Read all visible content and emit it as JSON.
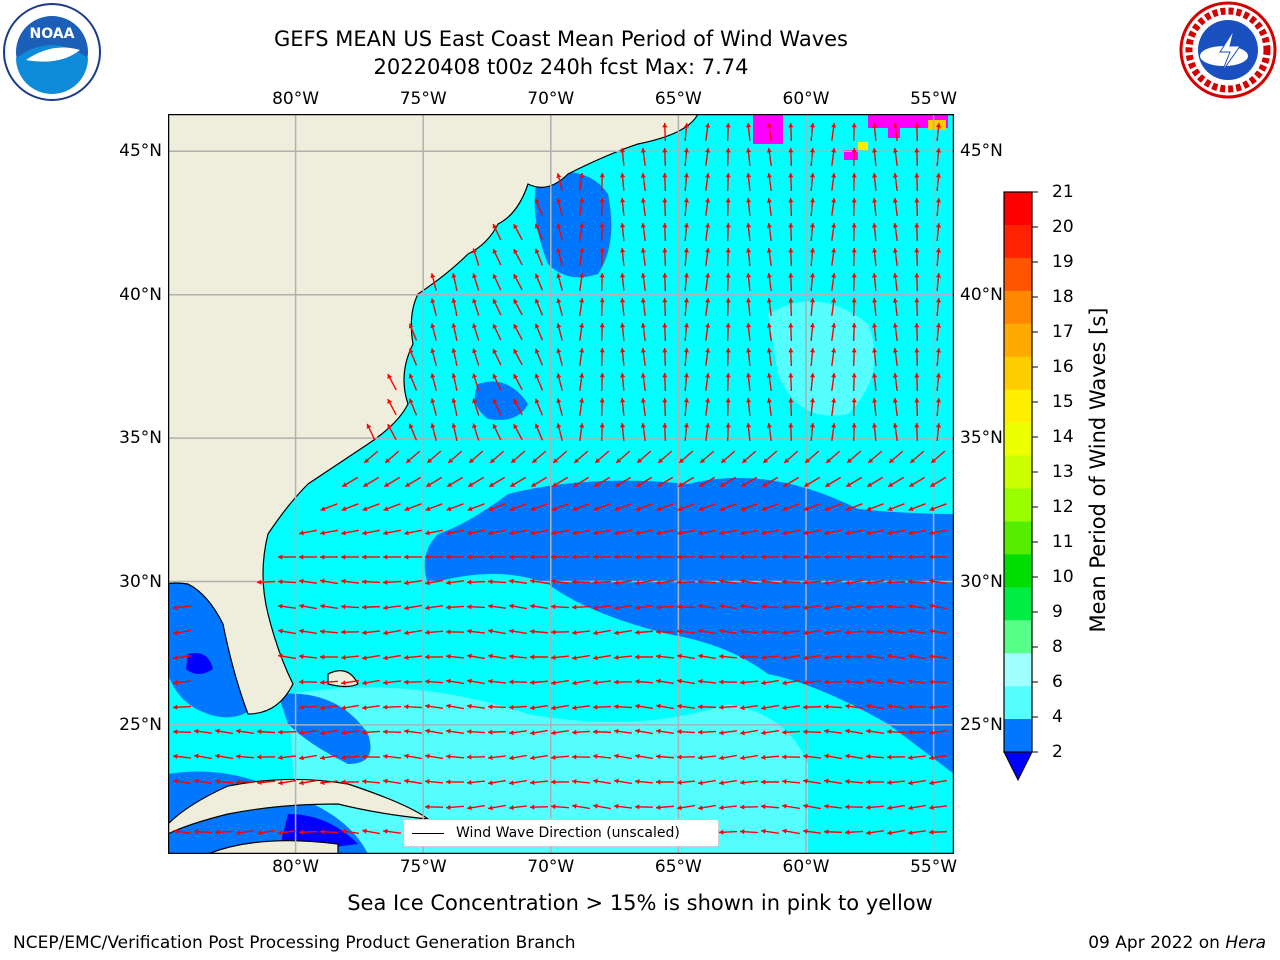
{
  "title": {
    "line1": "GEFS MEAN US East Coast Mean Period of Wind Waves",
    "line2": "20220408 t00z 240h fcst   Max: 7.74"
  },
  "logos": {
    "noaa": "NOAA",
    "nws_icon": "nws-seal-icon"
  },
  "map": {
    "lon_labels": [
      "80°W",
      "75°W",
      "70°W",
      "65°W",
      "60°W",
      "55°W"
    ],
    "lat_labels": [
      "45°N",
      "40°N",
      "35°N",
      "30°N",
      "25°N"
    ],
    "lon_values": [
      -80,
      -75,
      -70,
      -65,
      -60,
      -55
    ],
    "lat_values": [
      45,
      40,
      35,
      30,
      25
    ],
    "extent": {
      "lon": [
        -85,
        -54.2
      ],
      "lat": [
        20.5,
        46.3
      ]
    },
    "land_color": "#efeedd",
    "arrow_color": "#ff0000",
    "legend_label": "Wind Wave Direction (unscaled)"
  },
  "colorbar": {
    "label": "Mean Period of Wind Waves [s]",
    "ticks": [
      "21",
      "20",
      "19",
      "18",
      "17",
      "16",
      "15",
      "14",
      "13",
      "12",
      "11",
      "10",
      "9",
      "8",
      "6",
      "4",
      "2"
    ],
    "colors": [
      "#ff0000",
      "#ff2200",
      "#ff5500",
      "#ff8800",
      "#ffaa00",
      "#ffcc00",
      "#ffee00",
      "#eeff00",
      "#ccff00",
      "#99ff00",
      "#55ee00",
      "#00dd00",
      "#00ee44",
      "#55ff88",
      "#a0ffff",
      "#55ffff",
      "#00ffff",
      "#0077ff"
    ],
    "extend_color": "#0000ff"
  },
  "caption": "Sea Ice Concentration > 15% is shown in pink to yellow",
  "footer": {
    "left": "NCEP/EMC/Verification Post Processing Product Generation Branch",
    "right_date": "09 Apr 2022 on ",
    "right_host": "Hera"
  }
}
